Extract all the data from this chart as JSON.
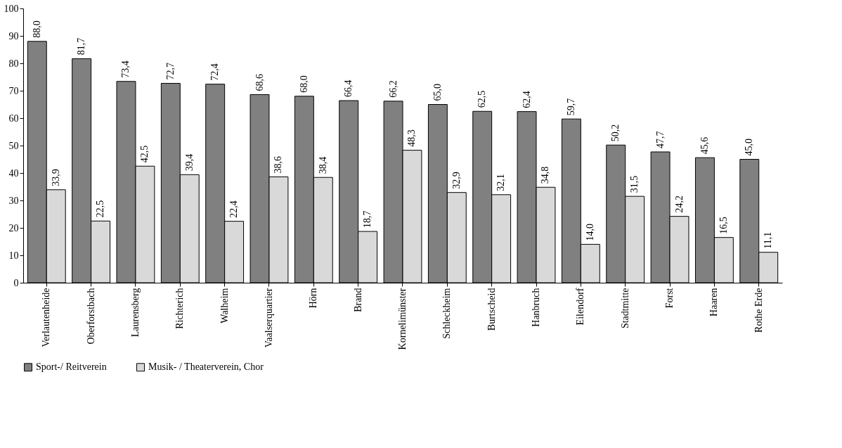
{
  "chart_data": {
    "type": "bar",
    "categories": [
      "Verlautenheide",
      "Oberforstbach",
      "Laurensberg",
      "Richterich",
      "Walheim",
      "Vaalserquartier",
      "Hörn",
      "Brand",
      "Kornelimünster",
      "Schleckheim",
      "Burtscheid",
      "Hanbruch",
      "Eilendorf",
      "Stadtmitte",
      "Forst",
      "Haaren",
      "Rothe Erde"
    ],
    "series": [
      {
        "name": "Sport-/ Reitverein",
        "color": "#808080",
        "values": [
          88.0,
          81.7,
          73.4,
          72.7,
          72.4,
          68.6,
          68.0,
          66.4,
          66.2,
          65.0,
          62.5,
          62.4,
          59.7,
          50.2,
          47.7,
          45.6,
          45.0
        ],
        "value_labels": [
          "88,0",
          "81,7",
          "73,4",
          "72,7",
          "72,4",
          "68,6",
          "68,0",
          "66,4",
          "66,2",
          "65,0",
          "62,5",
          "62,4",
          "59,7",
          "50,2",
          "47,7",
          "45,6",
          "45,0"
        ]
      },
      {
        "name": "Musik- / Theaterverein, Chor",
        "color": "#d9d9d9",
        "values": [
          33.9,
          22.5,
          42.5,
          39.4,
          22.4,
          38.6,
          38.4,
          18.7,
          48.3,
          32.9,
          32.1,
          34.8,
          14.0,
          31.5,
          24.2,
          16.5,
          11.1
        ],
        "value_labels": [
          "33,9",
          "22,5",
          "42,5",
          "39,4",
          "22,4",
          "38,6",
          "38,4",
          "18,7",
          "48,3",
          "32,9",
          "32,1",
          "34,8",
          "14,0",
          "31,5",
          "24,2",
          "16,5",
          "11,1"
        ]
      }
    ],
    "ylim": [
      0,
      100
    ],
    "yticks": [
      0,
      10,
      20,
      30,
      40,
      50,
      60,
      70,
      80,
      90,
      100
    ],
    "grid": false,
    "legend": "bottom"
  }
}
